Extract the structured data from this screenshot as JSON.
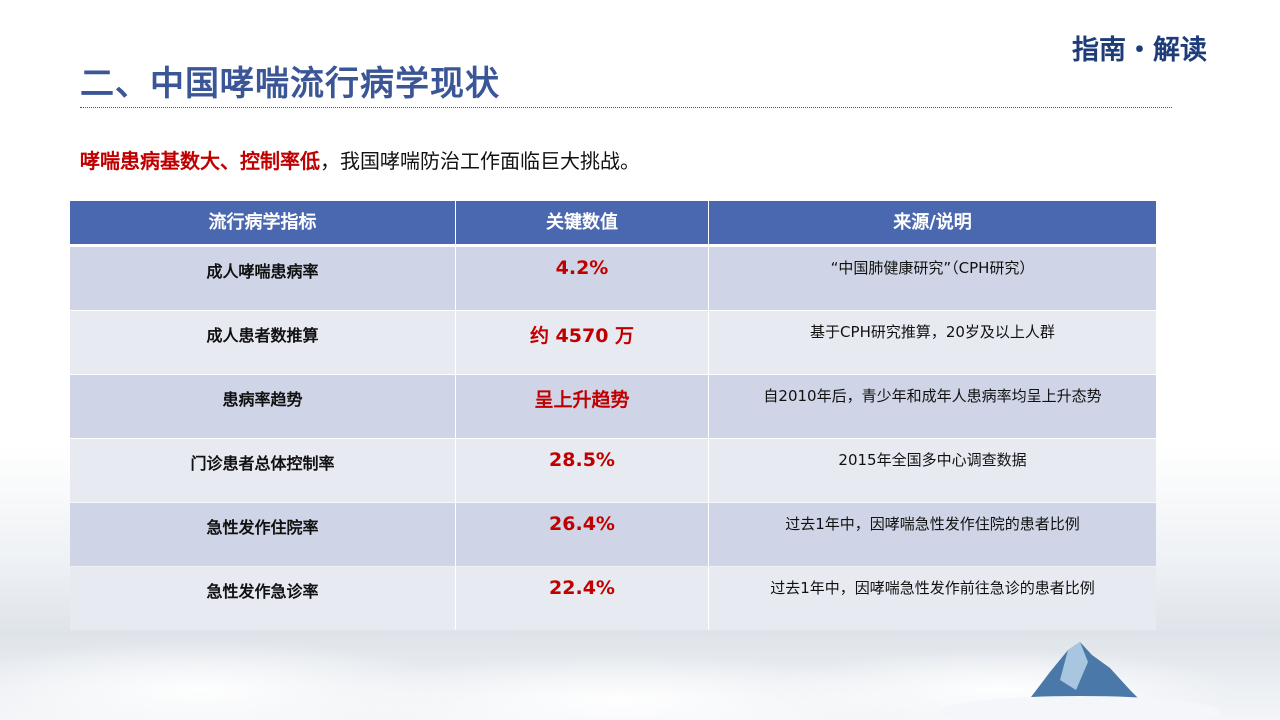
{
  "header": {
    "title": "二、中国哮喘流行病学现状",
    "tag": "指南・解读"
  },
  "intro": {
    "highlight": "哮喘患病基数大、控制率低",
    "rest": "，我国哮喘防治工作面临巨大挑战。"
  },
  "table": {
    "columns": [
      "流行病学指标",
      "关键数值",
      "来源/说明"
    ],
    "rows": [
      [
        "成人哮喘患病率",
        "4.2%",
        "“中国肺健康研究”（CPH研究）"
      ],
      [
        "成人患者数推算",
        "约 4570 万",
        "基于CPH研究推算，20岁及以上人群"
      ],
      [
        "患病率趋势",
        "呈上升趋势",
        "自2010年后，青少年和成年人患病率均呈上升态势"
      ],
      [
        "门诊患者总体控制率",
        "28.5%",
        "2015年全国多中心调查数据"
      ],
      [
        "急性发作住院率",
        "26.4%",
        "过去1年中，因哮喘急性发作住院的患者比例"
      ],
      [
        "急性发作急诊率",
        "22.4%",
        "过去1年中，因哮喘急性发作前往急诊的患者比例"
      ]
    ]
  }
}
